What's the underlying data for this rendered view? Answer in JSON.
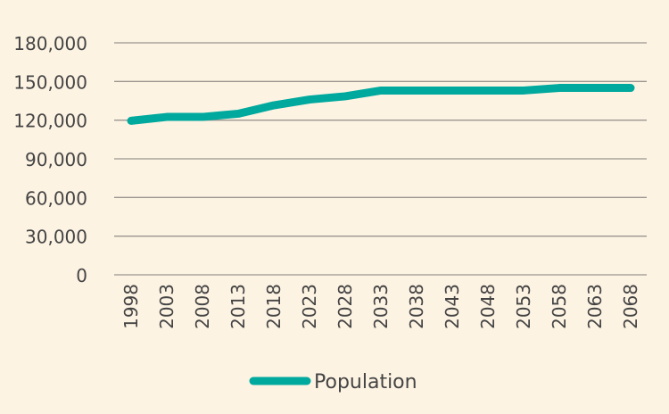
{
  "chart_data": {
    "type": "line",
    "title": "",
    "xlabel": "",
    "ylabel": "",
    "categories": [
      "1998",
      "2003",
      "2008",
      "2013",
      "2018",
      "2023",
      "2028",
      "2033",
      "2038",
      "2043",
      "2048",
      "2053",
      "2058",
      "2063",
      "2068"
    ],
    "series": [
      {
        "name": "Population",
        "color": "#00a99d",
        "values": [
          119500,
          122500,
          122500,
          125000,
          131500,
          136000,
          138500,
          143000,
          143000,
          143000,
          143000,
          143000,
          145000,
          145000,
          145000
        ]
      }
    ],
    "ylim": [
      0,
      180000
    ],
    "yticks": [
      0,
      30000,
      60000,
      90000,
      120000,
      150000,
      180000
    ],
    "ytick_labels": [
      "0",
      "30,000",
      "60,000",
      "90,000",
      "120,000",
      "150,000",
      "180,000"
    ],
    "grid": true,
    "legend_position": "bottom",
    "background": "#fdf3e3",
    "gridline_color": "#9a958f"
  }
}
